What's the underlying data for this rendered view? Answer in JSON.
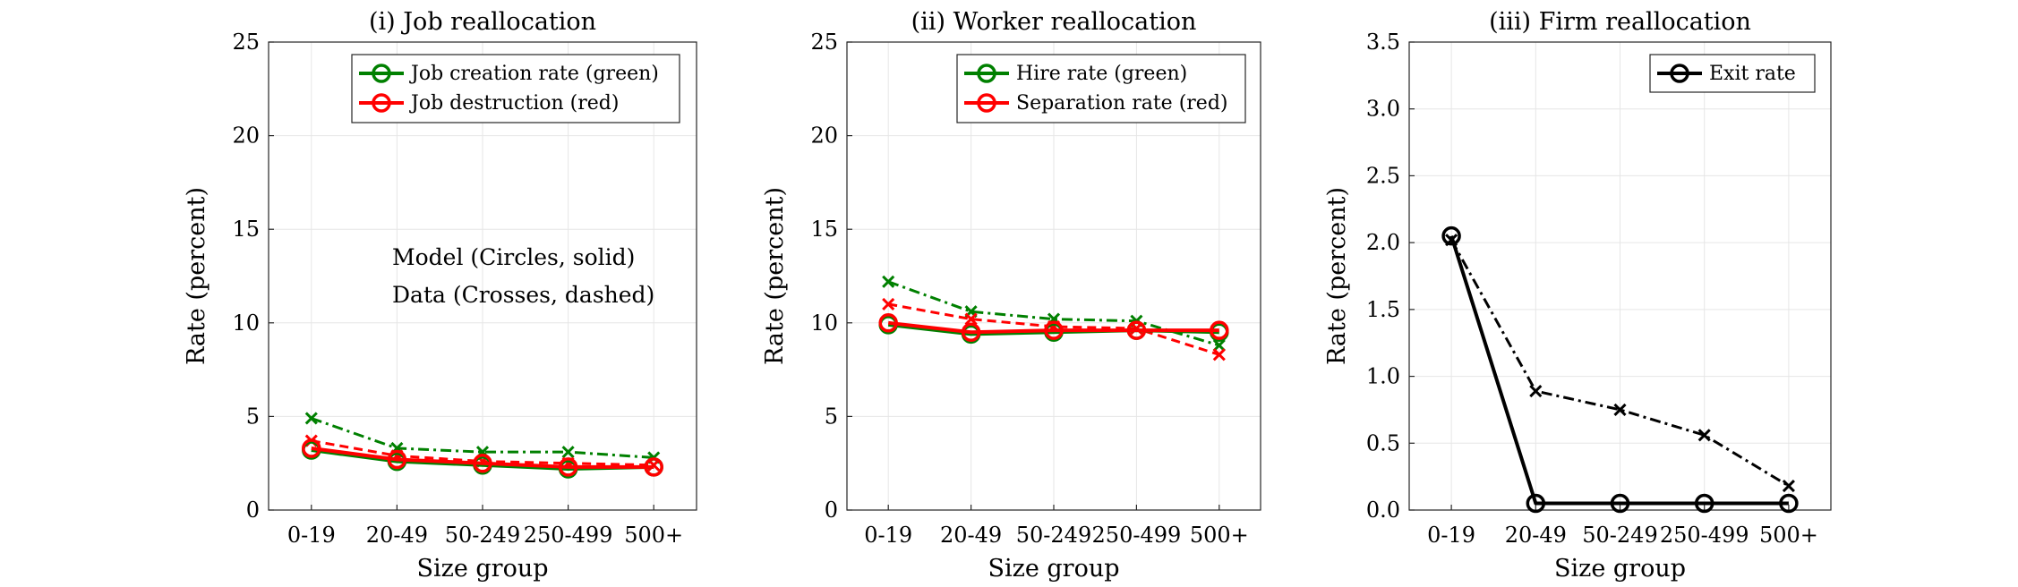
{
  "chart_data": [
    {
      "type": "line",
      "title": "(i) Job reallocation",
      "xlabel": "Size group",
      "ylabel": "Rate (percent)",
      "categories": [
        "0-19",
        "20-49",
        "50-249",
        "250-499",
        "500+"
      ],
      "ylim": [
        0,
        25
      ],
      "yticks": [
        "0",
        "5",
        "10",
        "15",
        "20",
        "25"
      ],
      "grid": true,
      "legend_position": "top-right",
      "annotations": [
        "Model (Circles, solid)",
        "Data (Crosses, dashed)"
      ],
      "series": [
        {
          "name": "Job creation rate (green)",
          "source": "model",
          "color": "#008000",
          "marker": "circle",
          "style": "solid",
          "legend": true,
          "values": [
            3.2,
            2.6,
            2.4,
            2.2,
            2.3
          ]
        },
        {
          "name": "Job destruction (red)",
          "source": "model",
          "color": "#ff0000",
          "marker": "circle",
          "style": "solid",
          "legend": true,
          "values": [
            3.3,
            2.7,
            2.5,
            2.3,
            2.3
          ]
        },
        {
          "source": "data",
          "color": "#008000",
          "marker": "cross",
          "style": "dashdot",
          "legend": false,
          "values": [
            4.9,
            3.3,
            3.1,
            3.1,
            2.8
          ]
        },
        {
          "source": "data",
          "color": "#ff0000",
          "marker": "cross",
          "style": "dashed",
          "legend": false,
          "values": [
            3.7,
            2.9,
            2.6,
            2.5,
            2.4
          ]
        }
      ]
    },
    {
      "type": "line",
      "title": "(ii) Worker reallocation",
      "xlabel": "Size group",
      "ylabel": "Rate (percent)",
      "categories": [
        "0-19",
        "20-49",
        "50-249",
        "250-499",
        "500+"
      ],
      "ylim": [
        0,
        25
      ],
      "yticks": [
        "0",
        "5",
        "10",
        "15",
        "20",
        "25"
      ],
      "grid": true,
      "legend_position": "top-right",
      "series": [
        {
          "name": "Hire rate (green)",
          "source": "model",
          "color": "#008000",
          "marker": "circle",
          "style": "solid",
          "legend": true,
          "values": [
            9.9,
            9.4,
            9.5,
            9.6,
            9.5
          ]
        },
        {
          "name": "Separation rate (red)",
          "source": "model",
          "color": "#ff0000",
          "marker": "circle",
          "style": "solid",
          "legend": true,
          "values": [
            10.0,
            9.5,
            9.6,
            9.6,
            9.6
          ]
        },
        {
          "source": "data",
          "color": "#008000",
          "marker": "cross",
          "style": "dashdot",
          "legend": false,
          "values": [
            12.2,
            10.6,
            10.2,
            10.1,
            8.8
          ]
        },
        {
          "source": "data",
          "color": "#ff0000",
          "marker": "cross",
          "style": "dashed",
          "legend": false,
          "values": [
            11.0,
            10.2,
            9.8,
            9.7,
            8.3
          ]
        }
      ]
    },
    {
      "type": "line",
      "title": "(iii) Firm reallocation",
      "xlabel": "Size group",
      "ylabel": "Rate (percent)",
      "categories": [
        "0-19",
        "20-49",
        "50-249",
        "250-499",
        "500+"
      ],
      "ylim": [
        0,
        3.5
      ],
      "yticks": [
        "0.0",
        "0.5",
        "1.0",
        "1.5",
        "2.0",
        "2.5",
        "3.0",
        "3.5"
      ],
      "grid": true,
      "legend_position": "top-right",
      "series": [
        {
          "name": "Exit rate",
          "source": "model",
          "color": "#000000",
          "marker": "circle",
          "style": "solid",
          "legend": true,
          "values": [
            2.05,
            0.05,
            0.05,
            0.05,
            0.05
          ]
        },
        {
          "source": "data",
          "color": "#000000",
          "marker": "cross",
          "style": "dashdot",
          "legend": false,
          "values": [
            2.02,
            0.89,
            0.75,
            0.56,
            0.18
          ]
        }
      ]
    }
  ]
}
